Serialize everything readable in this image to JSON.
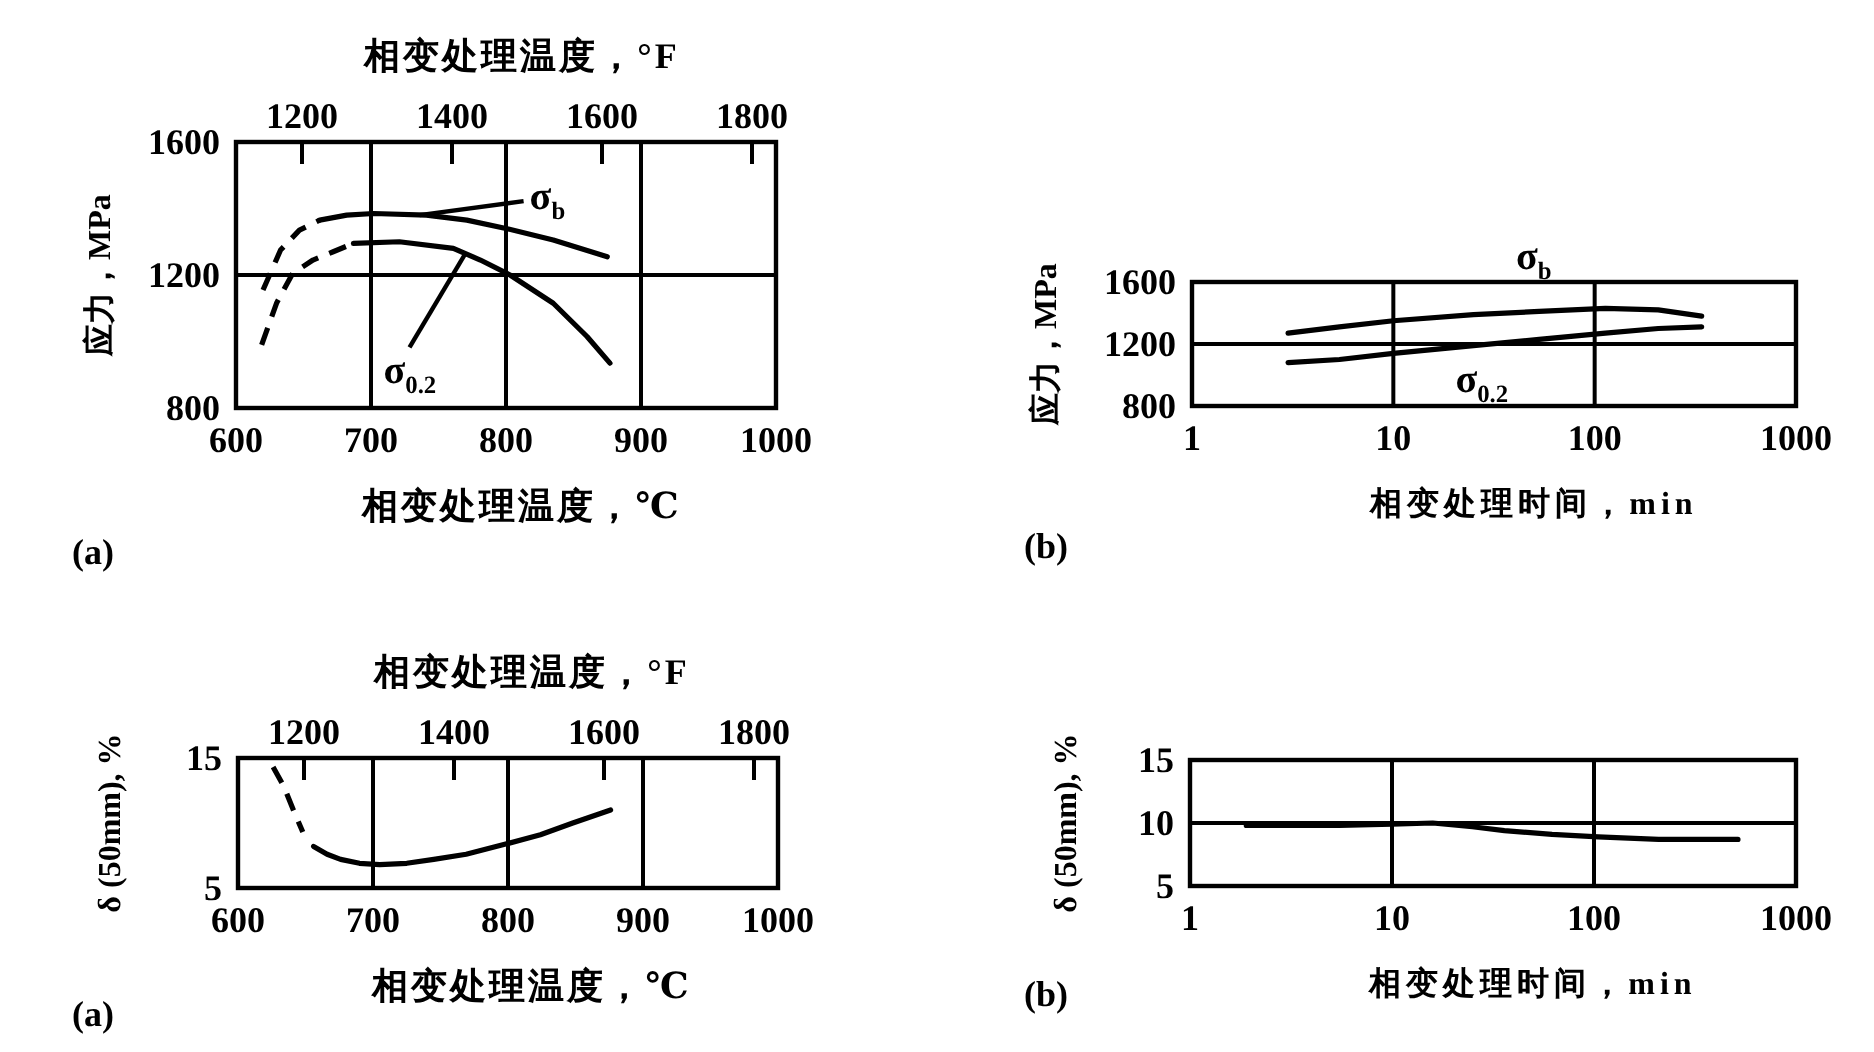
{
  "chart_data": [
    {
      "type": "line",
      "x2label": "相变处理温度，°F",
      "xlabel": "相变处理温度，℃",
      "ylabel": "应力，MPa",
      "xlim": [
        600,
        1000
      ],
      "xticks": [
        600,
        700,
        800,
        900,
        1000
      ],
      "x2lim": [
        1112,
        1832
      ],
      "x2ticks": [
        1200,
        1400,
        1600,
        1800
      ],
      "ylim": [
        800,
        1600
      ],
      "yticks": [
        800,
        1200,
        1600
      ],
      "grid": true,
      "series": [
        {
          "x": [
            620,
            633,
            647,
            662
          ],
          "values": [
            1155,
            1275,
            1335,
            1365
          ],
          "color": "#000000",
          "line_style": "dashed"
        },
        {
          "x": [
            662,
            682,
            702,
            741,
            771,
            800,
            835,
            875
          ],
          "values": [
            1365,
            1380,
            1385,
            1380,
            1365,
            1340,
            1305,
            1255
          ],
          "color": "#000000",
          "line_style": "solid"
        },
        {
          "x": [
            619,
            630,
            642,
            657,
            672,
            687
          ],
          "values": [
            990,
            1115,
            1205,
            1245,
            1270,
            1295
          ],
          "color": "#000000",
          "line_style": "dashed"
        },
        {
          "x": [
            687,
            721,
            761,
            781,
            803,
            835,
            860,
            877
          ],
          "values": [
            1295,
            1300,
            1280,
            1245,
            1200,
            1115,
            1015,
            935
          ],
          "color": "#000000",
          "line_style": "solid"
        }
      ],
      "annotations": [
        {
          "text": "σ$_{b}$",
          "x": 736,
          "y": 1380
        },
        {
          "text": "σ$_{0.2}$",
          "x": 770,
          "y": 1265
        },
        "(a)"
      ]
    },
    {
      "type": "line",
      "xlabel": "相变处理时间，min",
      "ylabel": "应力，MPa",
      "log": "x",
      "xlim": [
        1,
        1000
      ],
      "xticks": [
        1,
        10,
        100,
        1000
      ],
      "ylim": [
        800,
        1600
      ],
      "yticks": [
        800,
        1200,
        1600
      ],
      "grid": true,
      "series": [
        {
          "x": [
            3,
            5.4,
            10,
            25,
            53,
            113,
            207,
            340
          ],
          "values": [
            1270,
            1310,
            1350,
            1390,
            1410,
            1430,
            1420,
            1380
          ],
          "color": "#000000",
          "line_style": "solid"
        },
        {
          "x": [
            3,
            5.4,
            10,
            25,
            53,
            113,
            207,
            340
          ],
          "values": [
            1080,
            1100,
            1140,
            1190,
            1230,
            1270,
            1300,
            1310
          ],
          "color": "#000000",
          "line_style": "solid"
        }
      ],
      "annotations": [
        {
          "text": "σ$_{b}$",
          "x": 50,
          "y": 1410
        },
        {
          "text": "σ$_{0.2}$",
          "x": 30,
          "y": 1200
        },
        "(b)"
      ]
    },
    {
      "type": "line",
      "x2label": "相变处理温度，°F",
      "xlabel": "相变处理温度，℃",
      "ylabel": "δ (50mm), %",
      "xlim": [
        600,
        1000
      ],
      "xticks": [
        600,
        700,
        800,
        900,
        1000
      ],
      "x2lim": [
        1112,
        1832
      ],
      "x2ticks": [
        1200,
        1400,
        1600,
        1800
      ],
      "ylim": [
        5,
        15
      ],
      "yticks": [
        5,
        15
      ],
      "grid": "x",
      "series": [
        {
          "x": [
            626,
            634,
            641,
            648
          ],
          "values": [
            14.3,
            12.8,
            11.0,
            9.3
          ],
          "color": "#000000",
          "line_style": "dashed"
        },
        {
          "x": [
            656,
            666,
            676,
            690,
            705,
            725,
            745,
            769,
            799,
            824,
            848,
            876
          ],
          "values": [
            8.2,
            7.6,
            7.2,
            6.9,
            6.8,
            6.9,
            7.2,
            7.6,
            8.4,
            9.1,
            10.0,
            11.0
          ],
          "color": "#000000",
          "line_style": "solid"
        }
      ],
      "annotations": [
        "(a)"
      ]
    },
    {
      "type": "line",
      "xlabel": "相变处理时间，min",
      "ylabel": "δ (50mm), %",
      "log": "x",
      "xlim": [
        1,
        1000
      ],
      "xticks": [
        1,
        10,
        100,
        1000
      ],
      "ylim": [
        5,
        15
      ],
      "yticks": [
        5,
        10,
        15
      ],
      "grid": true,
      "series": [
        {
          "x": [
            1.9,
            5.5,
            10,
            15.9,
            25,
            36,
            62,
            105,
            209,
            516
          ],
          "values": [
            9.8,
            9.8,
            9.9,
            10,
            9.7,
            9.4,
            9.1,
            8.9,
            8.7,
            8.7
          ],
          "color": "#000000",
          "line_style": "solid"
        }
      ],
      "annotations": [
        "(b)"
      ]
    }
  ]
}
